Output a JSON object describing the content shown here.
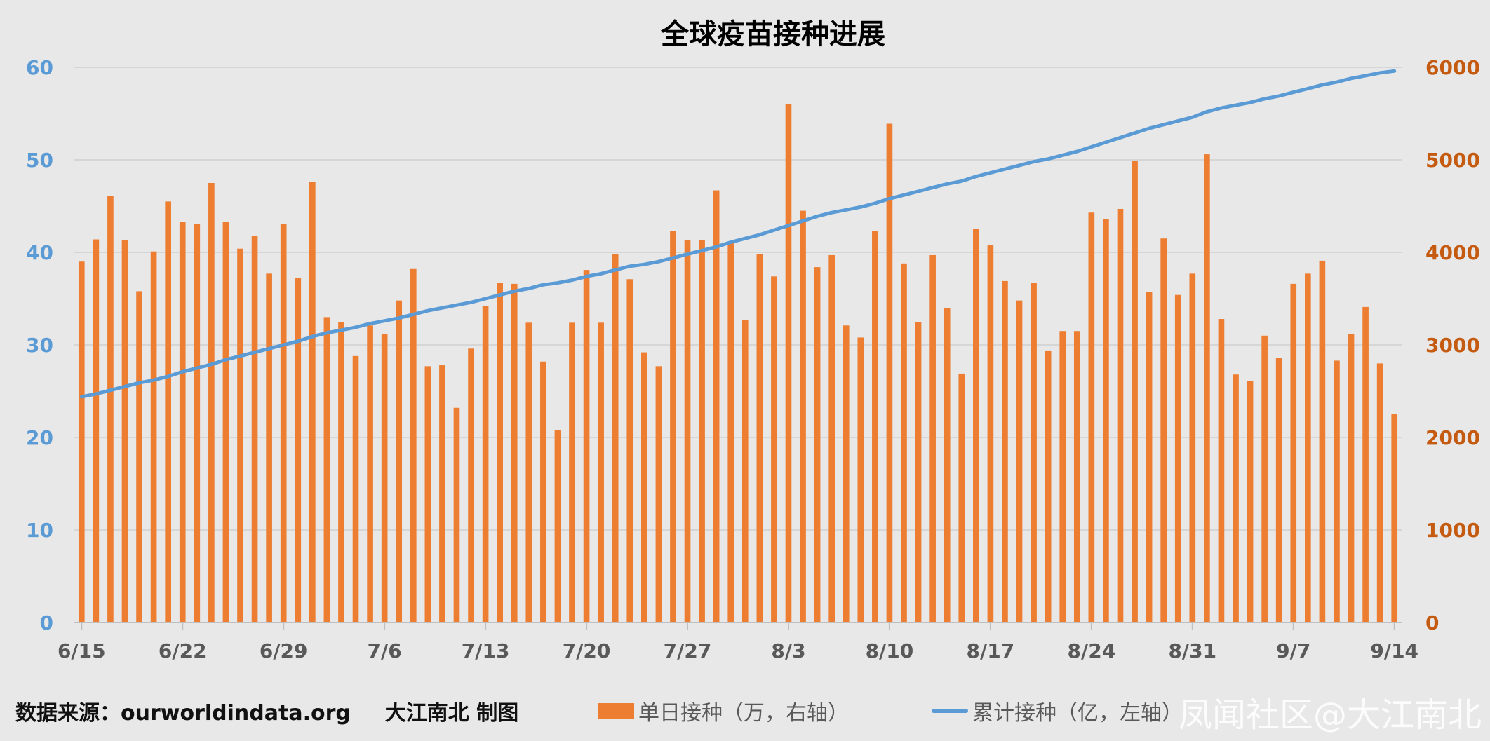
{
  "chart_data": {
    "type": "bar",
    "title": "全球疫苗接种进展",
    "colors": {
      "bars": "#ed7d31",
      "line": "#5b9bd5",
      "left_axis": "#5b9bd5",
      "right_axis": "#c55a11",
      "grid": "#d0d0d0"
    },
    "left_axis": {
      "ylim": [
        0,
        60
      ],
      "ticks": [
        "0",
        "10",
        "20",
        "30",
        "40",
        "50",
        "60"
      ]
    },
    "right_axis": {
      "ylim": [
        0,
        6000
      ],
      "ticks": [
        "0",
        "1000",
        "2000",
        "3000",
        "4000",
        "5000",
        "6000"
      ]
    },
    "x_tick_labels": [
      "6/15",
      "6/22",
      "6/29",
      "7/6",
      "7/13",
      "7/20",
      "7/27",
      "8/3",
      "8/10",
      "8/17",
      "8/24",
      "8/31",
      "9/7",
      "9/14"
    ],
    "series": [
      {
        "name": "单日接种（万，右轴）",
        "axis": "right",
        "type": "bar",
        "values": [
          3900,
          4140,
          4610,
          4130,
          3580,
          4010,
          4550,
          4330,
          4310,
          4750,
          4330,
          4040,
          4180,
          3770,
          4310,
          3720,
          4760,
          3300,
          3250,
          2880,
          3210,
          3120,
          3480,
          3820,
          2770,
          2780,
          2320,
          2960,
          3420,
          3670,
          3660,
          3240,
          2820,
          2080,
          3240,
          3810,
          3240,
          3980,
          3710,
          2920,
          2770,
          4230,
          4130,
          4130,
          4670,
          4110,
          3270,
          3980,
          3740,
          5600,
          4450,
          3840,
          3970,
          3210,
          3080,
          4230,
          5390,
          3880,
          3250,
          3970,
          3400,
          2690,
          4250,
          4080,
          3690,
          3480,
          3670,
          2940,
          3150,
          3150,
          4430,
          4360,
          4470,
          4990,
          3570,
          4150,
          3540,
          3770,
          5060,
          3280,
          2680,
          2610,
          3100,
          2860,
          3660,
          3770,
          3910,
          2830,
          3120,
          3410,
          2800,
          2250
        ]
      },
      {
        "name": "累计接种（亿，左轴）",
        "axis": "left",
        "type": "line",
        "values": [
          24.4,
          24.7,
          25.1,
          25.5,
          25.9,
          26.2,
          26.6,
          27.1,
          27.5,
          27.9,
          28.4,
          28.8,
          29.2,
          29.6,
          30.0,
          30.4,
          30.9,
          31.3,
          31.6,
          31.9,
          32.3,
          32.6,
          32.9,
          33.3,
          33.7,
          34.0,
          34.3,
          34.6,
          35.0,
          35.4,
          35.8,
          36.1,
          36.5,
          36.7,
          37.0,
          37.4,
          37.7,
          38.1,
          38.5,
          38.7,
          39.0,
          39.4,
          39.8,
          40.2,
          40.6,
          41.1,
          41.5,
          41.9,
          42.4,
          42.9,
          43.4,
          43.9,
          44.3,
          44.6,
          44.9,
          45.3,
          45.8,
          46.2,
          46.6,
          47.0,
          47.4,
          47.7,
          48.2,
          48.6,
          49.0,
          49.4,
          49.8,
          50.1,
          50.5,
          50.9,
          51.4,
          51.9,
          52.4,
          52.9,
          53.4,
          53.8,
          54.2,
          54.6,
          55.2,
          55.6,
          55.9,
          56.2,
          56.6,
          56.9,
          57.3,
          57.7,
          58.1,
          58.4,
          58.8,
          59.1,
          59.4,
          59.6
        ]
      }
    ]
  },
  "footer": {
    "source_label": "数据来源：ourworldindata.org",
    "author_label": "大江南北 制图"
  },
  "legend": {
    "bar_label": "单日接种（万，右轴）",
    "line_label": "累计接种（亿，左轴）"
  },
  "watermark": "凤闻社区@大江南北"
}
